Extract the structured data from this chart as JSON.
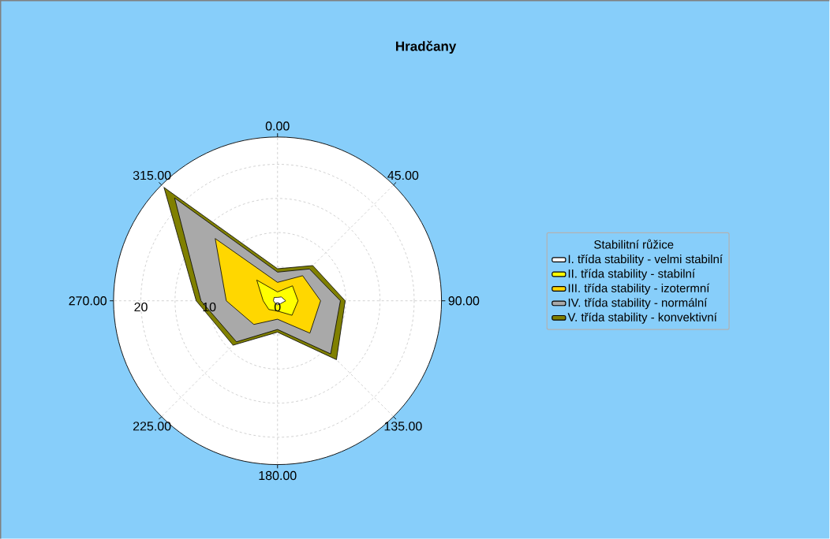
{
  "chart_data": {
    "type": "radar",
    "title": "Hradčany",
    "legend_title": "Stabilitní růžice",
    "categories": [
      "0.00",
      "45.00",
      "90.00",
      "135.00",
      "180.00",
      "225.00",
      "270.00",
      "315.00"
    ],
    "series": [
      {
        "name": "I. třída stability - velmi stabilní",
        "color": "#ffffff",
        "values": [
          0.5,
          0.8,
          1.2,
          0.6,
          0.6,
          0.5,
          0.6,
          0.7
        ]
      },
      {
        "name": "II. třída stability - stabilní",
        "color": "#ffff00",
        "values": [
          1.3,
          3.1,
          3.0,
          3.0,
          1.5,
          1.8,
          2.1,
          4.3
        ]
      },
      {
        "name": "III. třída stability - izotermní",
        "color": "#ffd700",
        "values": [
          2.7,
          5.2,
          6.3,
          6.7,
          2.7,
          4.9,
          7.5,
          12.9
        ]
      },
      {
        "name": "IV. třída stability - normální",
        "color": "#a9a9a9",
        "values": [
          4.2,
          6.6,
          9.2,
          11.0,
          4.2,
          8.5,
          11.2,
          21.3
        ]
      },
      {
        "name": "V. třída stability - konvektivní",
        "color": "#808000",
        "values": [
          4.7,
          7.3,
          9.9,
          12.2,
          4.6,
          9.2,
          11.9,
          23.5
        ]
      }
    ],
    "ylim": [
      0,
      24
    ],
    "yticks": [
      0,
      10,
      20
    ],
    "grid": true,
    "legend": "right"
  }
}
